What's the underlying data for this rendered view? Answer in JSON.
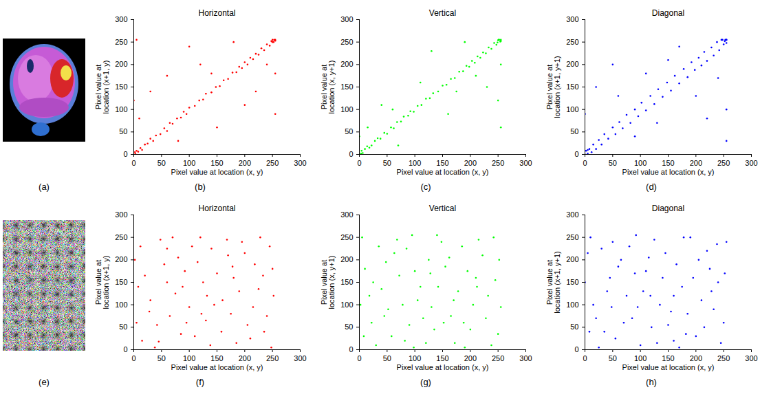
{
  "images": [
    {
      "caption": "(a)"
    },
    {
      "caption": "(e)"
    }
  ],
  "chart_data": [
    {
      "type": "scatter",
      "title": "Horizontal",
      "caption": "(b)",
      "color": "#ff0000",
      "x_label": "Pixel value at location (x, y)",
      "y_label": "Pixel value at location (x+1, y)",
      "xlim": [
        0,
        300
      ],
      "ylim": [
        0,
        300
      ],
      "xticks": [
        0,
        50,
        100,
        150,
        200,
        250,
        300
      ],
      "yticks": [
        0,
        50,
        100,
        150,
        200,
        250,
        300
      ],
      "x": [
        0,
        2,
        3,
        5,
        8,
        12,
        15,
        20,
        25,
        30,
        35,
        40,
        48,
        55,
        60,
        65,
        70,
        78,
        85,
        90,
        95,
        100,
        110,
        118,
        125,
        130,
        140,
        148,
        155,
        162,
        170,
        178,
        185,
        190,
        195,
        200,
        205,
        210,
        215,
        220,
        225,
        230,
        235,
        240,
        245,
        248,
        250,
        252,
        255,
        255,
        253,
        250,
        30,
        60,
        80,
        120,
        150,
        200,
        220,
        255,
        255,
        10,
        100,
        180,
        240,
        5,
        0,
        140
      ],
      "y": [
        0,
        5,
        1,
        8,
        6,
        14,
        10,
        22,
        24,
        35,
        30,
        42,
        45,
        58,
        52,
        70,
        68,
        80,
        82,
        95,
        90,
        104,
        108,
        120,
        122,
        135,
        138,
        150,
        152,
        165,
        168,
        182,
        183,
        195,
        192,
        205,
        200,
        215,
        212,
        224,
        222,
        236,
        232,
        245,
        242,
        252,
        255,
        250,
        255,
        253,
        255,
        250,
        140,
        175,
        30,
        200,
        60,
        110,
        140,
        90,
        180,
        80,
        240,
        250,
        200,
        255,
        120,
        180
      ]
    },
    {
      "type": "scatter",
      "title": "Vertical",
      "caption": "(c)",
      "color": "#00ff00",
      "x_label": "Pixel value at location (x, y)",
      "y_label": "Pixel value at location (x, y+1)",
      "xlim": [
        0,
        300
      ],
      "ylim": [
        0,
        300
      ],
      "xticks": [
        0,
        50,
        100,
        150,
        200,
        250,
        300
      ],
      "yticks": [
        0,
        50,
        100,
        150,
        200,
        250,
        300
      ],
      "x": [
        0,
        3,
        4,
        6,
        10,
        14,
        18,
        22,
        28,
        33,
        38,
        45,
        50,
        57,
        62,
        68,
        75,
        80,
        88,
        92,
        98,
        105,
        112,
        120,
        127,
        133,
        142,
        150,
        157,
        165,
        172,
        180,
        187,
        193,
        198,
        203,
        208,
        213,
        218,
        223,
        228,
        233,
        238,
        243,
        247,
        250,
        252,
        254,
        255,
        255,
        251,
        249,
        40,
        70,
        110,
        160,
        190,
        230,
        255,
        255,
        15,
        130,
        210,
        250,
        0,
        175,
        60
      ],
      "y": [
        0,
        2,
        8,
        3,
        12,
        18,
        15,
        20,
        30,
        36,
        35,
        48,
        46,
        60,
        58,
        72,
        73,
        84,
        86,
        96,
        95,
        108,
        110,
        124,
        125,
        136,
        140,
        153,
        155,
        168,
        170,
        184,
        185,
        197,
        195,
        208,
        204,
        218,
        215,
        227,
        225,
        238,
        235,
        248,
        244,
        254,
        255,
        251,
        255,
        252,
        255,
        249,
        110,
        20,
        160,
        90,
        250,
        150,
        200,
        60,
        60,
        230,
        175,
        120,
        40,
        140,
        100
      ]
    },
    {
      "type": "scatter",
      "title": "Diagonal",
      "caption": "(d)",
      "color": "#0000ff",
      "x_label": "Pixel value at location (x, y)",
      "y_label": "Pixel value at location (x+1, y+1)",
      "xlim": [
        0,
        300
      ],
      "ylim": [
        0,
        300
      ],
      "xticks": [
        0,
        50,
        100,
        150,
        200,
        250,
        300
      ],
      "yticks": [
        0,
        50,
        100,
        150,
        200,
        250,
        300
      ],
      "x": [
        0,
        2,
        5,
        8,
        12,
        15,
        20,
        25,
        30,
        35,
        42,
        50,
        55,
        62,
        68,
        75,
        82,
        90,
        96,
        102,
        110,
        118,
        125,
        132,
        140,
        148,
        155,
        162,
        170,
        178,
        185,
        192,
        198,
        205,
        210,
        215,
        220,
        228,
        232,
        238,
        242,
        248,
        250,
        253,
        255,
        255,
        246,
        252,
        20,
        50,
        90,
        130,
        170,
        200,
        255,
        255,
        0,
        110,
        240,
        60,
        150,
        220,
        255,
        5
      ],
      "y": [
        0,
        8,
        2,
        12,
        5,
        22,
        12,
        32,
        22,
        45,
        35,
        60,
        45,
        72,
        58,
        88,
        70,
        100,
        85,
        115,
        98,
        130,
        112,
        145,
        128,
        160,
        142,
        175,
        158,
        190,
        172,
        205,
        188,
        215,
        198,
        228,
        208,
        238,
        220,
        250,
        232,
        255,
        245,
        255,
        255,
        248,
        255,
        252,
        150,
        200,
        40,
        70,
        240,
        130,
        100,
        30,
        90,
        180,
        170,
        130,
        210,
        80,
        255,
        10
      ]
    },
    {
      "type": "scatter",
      "title": "Horizontal",
      "caption": "(f)",
      "color": "#ff0000",
      "x_label": "Pixel value at location (x, y)",
      "y_label": "Pixel value at location (x+1, y)",
      "xlim": [
        0,
        300
      ],
      "ylim": [
        0,
        300
      ],
      "xticks": [
        0,
        50,
        100,
        150,
        200,
        250,
        300
      ],
      "yticks": [
        0,
        50,
        100,
        150,
        200,
        250,
        300
      ],
      "x": [
        12,
        45,
        88,
        130,
        170,
        215,
        250,
        30,
        70,
        110,
        150,
        195,
        235,
        5,
        55,
        100,
        140,
        185,
        225,
        20,
        65,
        120,
        160,
        205,
        245,
        38,
        80,
        125,
        175,
        218,
        252,
        8,
        48,
        95,
        138,
        180,
        228,
        28,
        75,
        115,
        158,
        200,
        240,
        15,
        60,
        105,
        145,
        190,
        233,
        42,
        92,
        132,
        168,
        210,
        248,
        2,
        85,
        178,
        122,
        60
      ],
      "y": [
        230,
        18,
        140,
        65,
        210,
        95,
        180,
        110,
        250,
        30,
        170,
        240,
        40,
        60,
        190,
        95,
        225,
        15,
        135,
        165,
        75,
        250,
        110,
        55,
        230,
        5,
        205,
        150,
        80,
        190,
        120,
        140,
        245,
        60,
        10,
        160,
        250,
        85,
        125,
        195,
        40,
        215,
        75,
        20,
        150,
        230,
        100,
        130,
        165,
        55,
        175,
        120,
        245,
        25,
        5,
        200,
        35,
        185,
        80,
        225
      ]
    },
    {
      "type": "scatter",
      "title": "Vertical",
      "caption": "(g)",
      "color": "#00ff00",
      "x_label": "Pixel value at location (x, y)",
      "y_label": "Pixel value at location (x, y+1)",
      "xlim": [
        0,
        300
      ],
      "ylim": [
        0,
        300
      ],
      "xticks": [
        0,
        50,
        100,
        150,
        200,
        250,
        300
      ],
      "yticks": [
        0,
        50,
        100,
        150,
        200,
        250,
        300
      ],
      "x": [
        5,
        40,
        82,
        125,
        165,
        210,
        250,
        22,
        63,
        105,
        148,
        190,
        232,
        10,
        52,
        95,
        135,
        178,
        222,
        255,
        30,
        72,
        115,
        155,
        200,
        242,
        18,
        58,
        100,
        142,
        185,
        228,
        35,
        78,
        120,
        162,
        205,
        245,
        8,
        48,
        90,
        130,
        172,
        215,
        252,
        25,
        68,
        110,
        152,
        195,
        238,
        45,
        85,
        128,
        170,
        212,
        2,
        98,
        188,
        140
      ],
      "y": [
        250,
        135,
        20,
        200,
        75,
        160,
        35,
        60,
        215,
        110,
        240,
        5,
        120,
        180,
        90,
        255,
        45,
        130,
        210,
        95,
        10,
        165,
        70,
        185,
        45,
        250,
        120,
        30,
        175,
        140,
        230,
        70,
        230,
        100,
        15,
        205,
        100,
        155,
        30,
        195,
        55,
        95,
        15,
        245,
        200,
        150,
        245,
        140,
        60,
        175,
        10,
        75,
        225,
        170,
        110,
        140,
        100,
        5,
        60,
        255
      ]
    },
    {
      "type": "scatter",
      "title": "Diagonal",
      "caption": "(h)",
      "color": "#0000ff",
      "x_label": "Pixel value at location (x, y)",
      "y_label": "Pixel value at location (x+1, y+1)",
      "xlim": [
        0,
        300
      ],
      "ylim": [
        0,
        300
      ],
      "xticks": [
        0,
        50,
        100,
        150,
        200,
        250,
        300
      ],
      "yticks": [
        0,
        50,
        100,
        150,
        200,
        250,
        300
      ],
      "x": [
        15,
        50,
        90,
        130,
        175,
        220,
        250,
        35,
        75,
        115,
        155,
        200,
        240,
        5,
        45,
        85,
        125,
        165,
        210,
        255,
        25,
        65,
        105,
        150,
        190,
        232,
        10,
        55,
        95,
        140,
        182,
        225,
        40,
        80,
        120,
        160,
        205,
        245,
        20,
        60,
        100,
        145,
        185,
        228,
        30,
        70,
        110,
        135,
        178,
        215,
        252,
        0,
        48,
        92,
        170,
        238,
        118,
        195,
        160,
        8
      ],
      "y": [
        100,
        240,
        170,
        15,
        140,
        220,
        60,
        40,
        120,
        205,
        85,
        30,
        150,
        215,
        160,
        70,
        245,
        190,
        110,
        240,
        5,
        200,
        130,
        55,
        250,
        90,
        250,
        25,
        95,
        160,
        35,
        180,
        130,
        230,
        50,
        120,
        200,
        15,
        70,
        185,
        10,
        215,
        80,
        130,
        225,
        60,
        175,
        100,
        250,
        50,
        170,
        150,
        95,
        255,
        5,
        235,
        120,
        160,
        20,
        40
      ]
    }
  ]
}
